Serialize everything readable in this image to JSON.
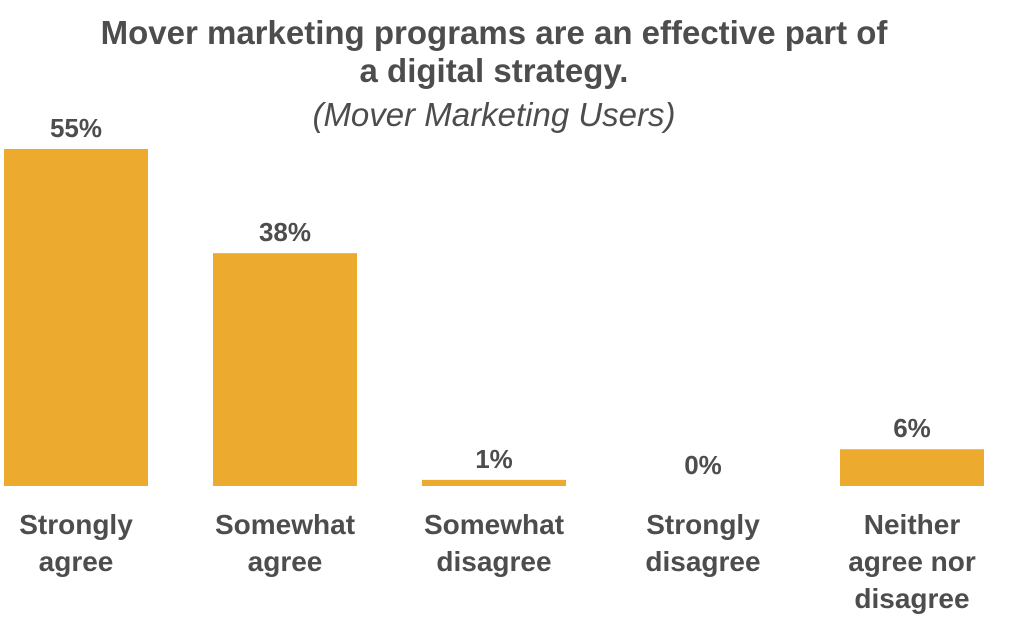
{
  "title_lines": [
    "Mover marketing programs are an effective part of",
    "a digital strategy."
  ],
  "subtitle": "(Mover Marketing Users)",
  "colors": {
    "bar": "#ecab2e",
    "text": "#4d4d4d",
    "background": "#ffffff"
  },
  "chart_data": {
    "type": "bar",
    "title": "Mover marketing programs are an effective part of a digital strategy.",
    "subtitle": "(Mover Marketing Users)",
    "categories": [
      "Strongly agree",
      "Somewhat agree",
      "Somewhat disagree",
      "Strongly disagree",
      "Neither agree nor disagree"
    ],
    "category_lines": [
      [
        "Strongly",
        "agree"
      ],
      [
        "Somewhat",
        "agree"
      ],
      [
        "Somewhat",
        "disagree"
      ],
      [
        "Strongly",
        "disagree"
      ],
      [
        "Neither",
        "agree nor",
        "disagree"
      ]
    ],
    "values": [
      55,
      38,
      1,
      0,
      6
    ],
    "value_labels": [
      "55%",
      "38%",
      "1%",
      "0%",
      "6%"
    ],
    "ylim": [
      0,
      55
    ],
    "grid": false,
    "legend": "none",
    "xlabel": "",
    "ylabel": ""
  }
}
